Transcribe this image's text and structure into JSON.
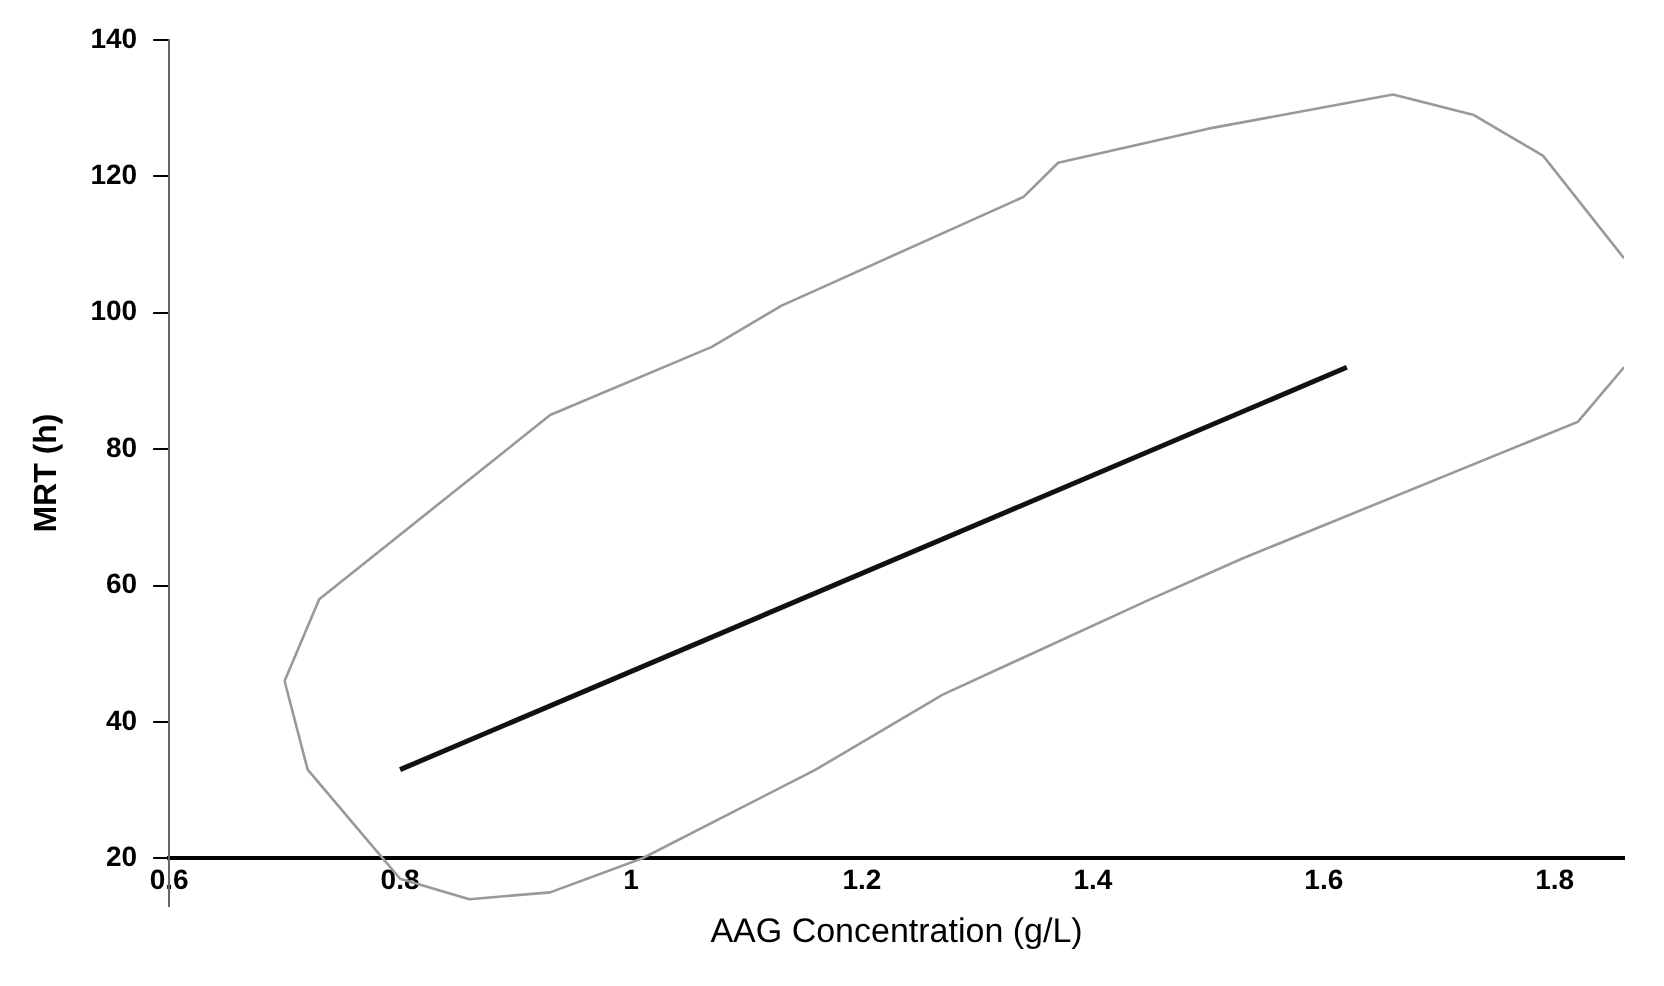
{
  "chart_data": {
    "type": "line",
    "xlabel": "AAG Concentration (g/L)",
    "ylabel": "MRT (h)",
    "xlim": [
      0.6,
      1.86
    ],
    "xticks": [
      0.6,
      0.8,
      1,
      1.2,
      1.4,
      1.6,
      1.8
    ],
    "ylim": [
      13,
      140
    ],
    "yticks": [
      20,
      40,
      60,
      80,
      100,
      120,
      140
    ],
    "grid": false,
    "legend": false,
    "marker": "none",
    "series": [
      {
        "color": "#999999",
        "x": [
          0.7,
          0.72,
          0.73,
          0.93,
          1.07,
          1.13,
          1.34,
          1.37,
          1.5,
          1.66,
          1.73,
          1.79,
          1.86
        ],
        "values": [
          46,
          54,
          58,
          85,
          95,
          101,
          117,
          122,
          127,
          132,
          129,
          123,
          108
        ]
      },
      {
        "color": "#999999",
        "x": [
          0.7,
          0.72,
          0.77,
          0.8,
          0.86,
          0.93,
          1.01,
          1.16,
          1.27,
          1.45,
          1.53,
          1.82,
          1.86
        ],
        "values": [
          46,
          33,
          23,
          17,
          14,
          15,
          20,
          33,
          44,
          58,
          64,
          84,
          92
        ]
      },
      {
        "color": "#111111",
        "x": [
          0.8,
          1.62
        ],
        "values": [
          33,
          92
        ]
      }
    ]
  }
}
